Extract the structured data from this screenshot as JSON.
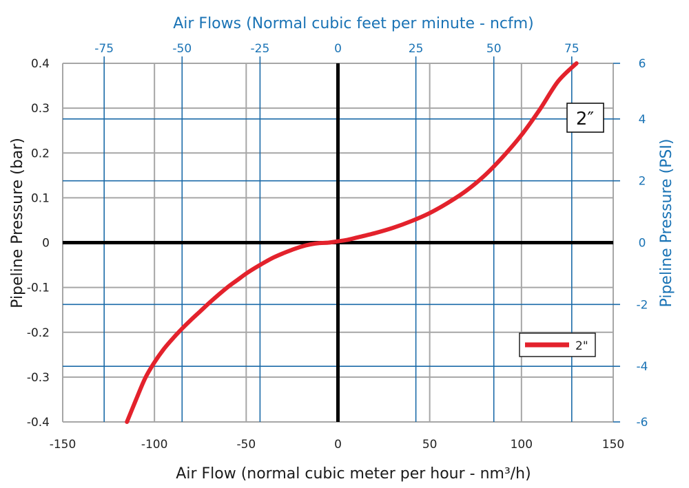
{
  "chart_data": {
    "type": "line",
    "title": "",
    "xlabel": "Air Flow (normal cubic meter per hour - nm³/h)",
    "ylabel": "Pipeline Pressure (bar)",
    "x2label": "Air Flows (Normal cubic feet per minute - ncfm)",
    "y2label": "Pipeline Pressure (PSI)",
    "xlim": [
      -150,
      150
    ],
    "ylim": [
      -0.4,
      0.4
    ],
    "x2lim": [
      -88.3,
      88.3
    ],
    "y2lim": [
      -5.8,
      5.8
    ],
    "x_ticks": [
      -150,
      -100,
      -50,
      0,
      50,
      100,
      150
    ],
    "x_tick_labels": [
      "-150",
      "-100",
      "-50",
      "0",
      "50",
      "100",
      "150"
    ],
    "y_ticks": [
      -0.4,
      -0.3,
      -0.2,
      -0.1,
      0,
      0.1,
      0.2,
      0.3,
      0.4
    ],
    "y_tick_labels": [
      "-0.4",
      "-0.3",
      "-0.2",
      "-0.1",
      "0",
      "0.1",
      "0.2",
      "0.3",
      "0.4"
    ],
    "x2_ticks": [
      -75,
      -50,
      -25,
      0,
      25,
      50,
      75
    ],
    "x2_tick_labels": [
      "-75",
      "-50",
      "-25",
      "0",
      "25",
      "50",
      "75"
    ],
    "y2_ticks": [
      -6,
      -4,
      -2,
      0,
      2,
      4,
      6
    ],
    "y2_tick_labels": [
      "-6",
      "-4",
      "-2",
      "0",
      "2",
      "4",
      "6"
    ],
    "y2_tick_pos": [
      -5.8,
      -4,
      -2,
      0,
      2,
      4,
      5.8
    ],
    "grid": true,
    "legend_position": "bottom-right",
    "series": [
      {
        "name": "2\"",
        "color": "#e3222c",
        "x": [
          -115,
          -110,
          -105,
          -100,
          -95,
          -90,
          -85,
          -80,
          -75,
          -70,
          -65,
          -60,
          -55,
          -50,
          -45,
          -40,
          -35,
          -30,
          -25,
          -20,
          -15,
          -10,
          -5,
          0,
          5,
          10,
          20,
          30,
          40,
          50,
          60,
          70,
          80,
          90,
          100,
          110,
          120,
          130
        ],
        "y": [
          -0.4,
          -0.35,
          -0.302,
          -0.267,
          -0.238,
          -0.214,
          -0.192,
          -0.172,
          -0.153,
          -0.134,
          -0.116,
          -0.099,
          -0.084,
          -0.069,
          -0.056,
          -0.044,
          -0.033,
          -0.024,
          -0.016,
          -0.009,
          -0.004,
          -0.001,
          0.0,
          0.003,
          0.006,
          0.011,
          0.021,
          0.033,
          0.048,
          0.066,
          0.089,
          0.116,
          0.15,
          0.192,
          0.24,
          0.297,
          0.36,
          0.4
        ]
      }
    ],
    "annotations": [
      {
        "text": "2″",
        "x": 135,
        "y": 0.28
      }
    ]
  },
  "colors": {
    "grid_gray": "#a6a6a6",
    "grid_blue": "#1a6aa8",
    "axis_blue_text": "#1a73b5",
    "zero_axis": "#000000",
    "series": "#e3222c"
  }
}
